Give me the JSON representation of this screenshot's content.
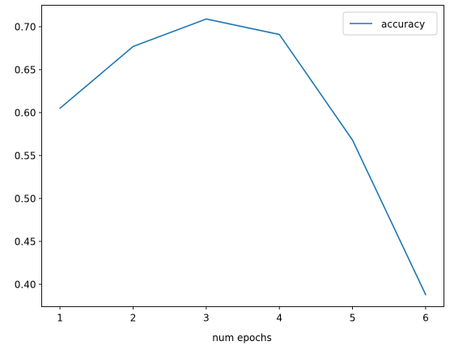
{
  "chart_data": {
    "type": "line",
    "title": "",
    "xlabel": "num epochs",
    "ylabel": "",
    "x": [
      1,
      2,
      3,
      4,
      5,
      6
    ],
    "series": [
      {
        "name": "accuracy",
        "color": "#1f77b4",
        "values": [
          0.605,
          0.677,
          0.709,
          0.691,
          0.568,
          0.388
        ]
      }
    ],
    "xticks": [
      "1",
      "2",
      "3",
      "4",
      "5",
      "6"
    ],
    "yticks": [
      "0.40",
      "0.45",
      "0.50",
      "0.55",
      "0.60",
      "0.65",
      "0.70"
    ],
    "xlim": [
      0.75,
      6.25
    ],
    "ylim": [
      0.374,
      0.725
    ],
    "grid": false,
    "legend_position": "upper right"
  }
}
